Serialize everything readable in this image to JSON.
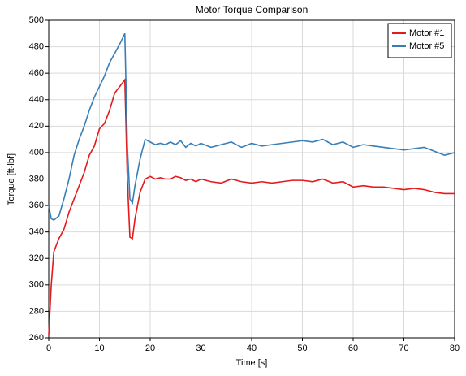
{
  "chart_data": {
    "type": "line",
    "title": "Motor Torque Comparison",
    "x_label": "Time [s]",
    "y_label": "Torque [ft-lbf]",
    "x": [
      0,
      0.5,
      1,
      2,
      3,
      4,
      5,
      6,
      7,
      8,
      9,
      10,
      11,
      12,
      13,
      14,
      15,
      15.5,
      16,
      16.5,
      17,
      18,
      19,
      20,
      21,
      22,
      23,
      24,
      25,
      26,
      27,
      28,
      29,
      30,
      32,
      34,
      36,
      38,
      40,
      42,
      44,
      46,
      48,
      50,
      52,
      54,
      56,
      58,
      60,
      62,
      64,
      66,
      68,
      70,
      72,
      74,
      76,
      78,
      80
    ],
    "series": [
      {
        "name": "Motor #1",
        "color": "#e41a1c",
        "values": [
          262,
          300,
          325,
          335,
          342,
          355,
          365,
          375,
          385,
          398,
          405,
          418,
          422,
          432,
          445,
          450,
          455,
          380,
          336,
          335,
          350,
          370,
          380,
          382,
          380,
          381,
          380,
          380,
          382,
          381,
          379,
          380,
          378,
          380,
          378,
          377,
          380,
          378,
          377,
          378,
          377,
          378,
          379,
          379,
          378,
          380,
          377,
          378,
          374,
          375,
          374,
          374,
          373,
          372,
          373,
          372,
          370,
          369,
          369
        ]
      },
      {
        "name": "Motor #5",
        "color": "#377eb8",
        "values": [
          360,
          350,
          349,
          352,
          365,
          380,
          398,
          410,
          420,
          432,
          442,
          450,
          458,
          468,
          475,
          482,
          490,
          405,
          365,
          362,
          375,
          395,
          410,
          408,
          406,
          407,
          406,
          408,
          406,
          409,
          404,
          407,
          405,
          407,
          404,
          406,
          408,
          404,
          407,
          405,
          406,
          407,
          408,
          409,
          408,
          410,
          406,
          408,
          404,
          406,
          405,
          404,
          403,
          402,
          403,
          404,
          401,
          398,
          400
        ]
      }
    ],
    "xlim": [
      0,
      80
    ],
    "xticks": [
      0,
      10,
      20,
      30,
      40,
      50,
      60,
      70,
      80
    ],
    "ylim": [
      260,
      500
    ],
    "yticks": [
      260,
      280,
      300,
      320,
      340,
      360,
      380,
      400,
      420,
      440,
      460,
      480,
      500
    ],
    "grid": true,
    "legend": "upper right"
  }
}
